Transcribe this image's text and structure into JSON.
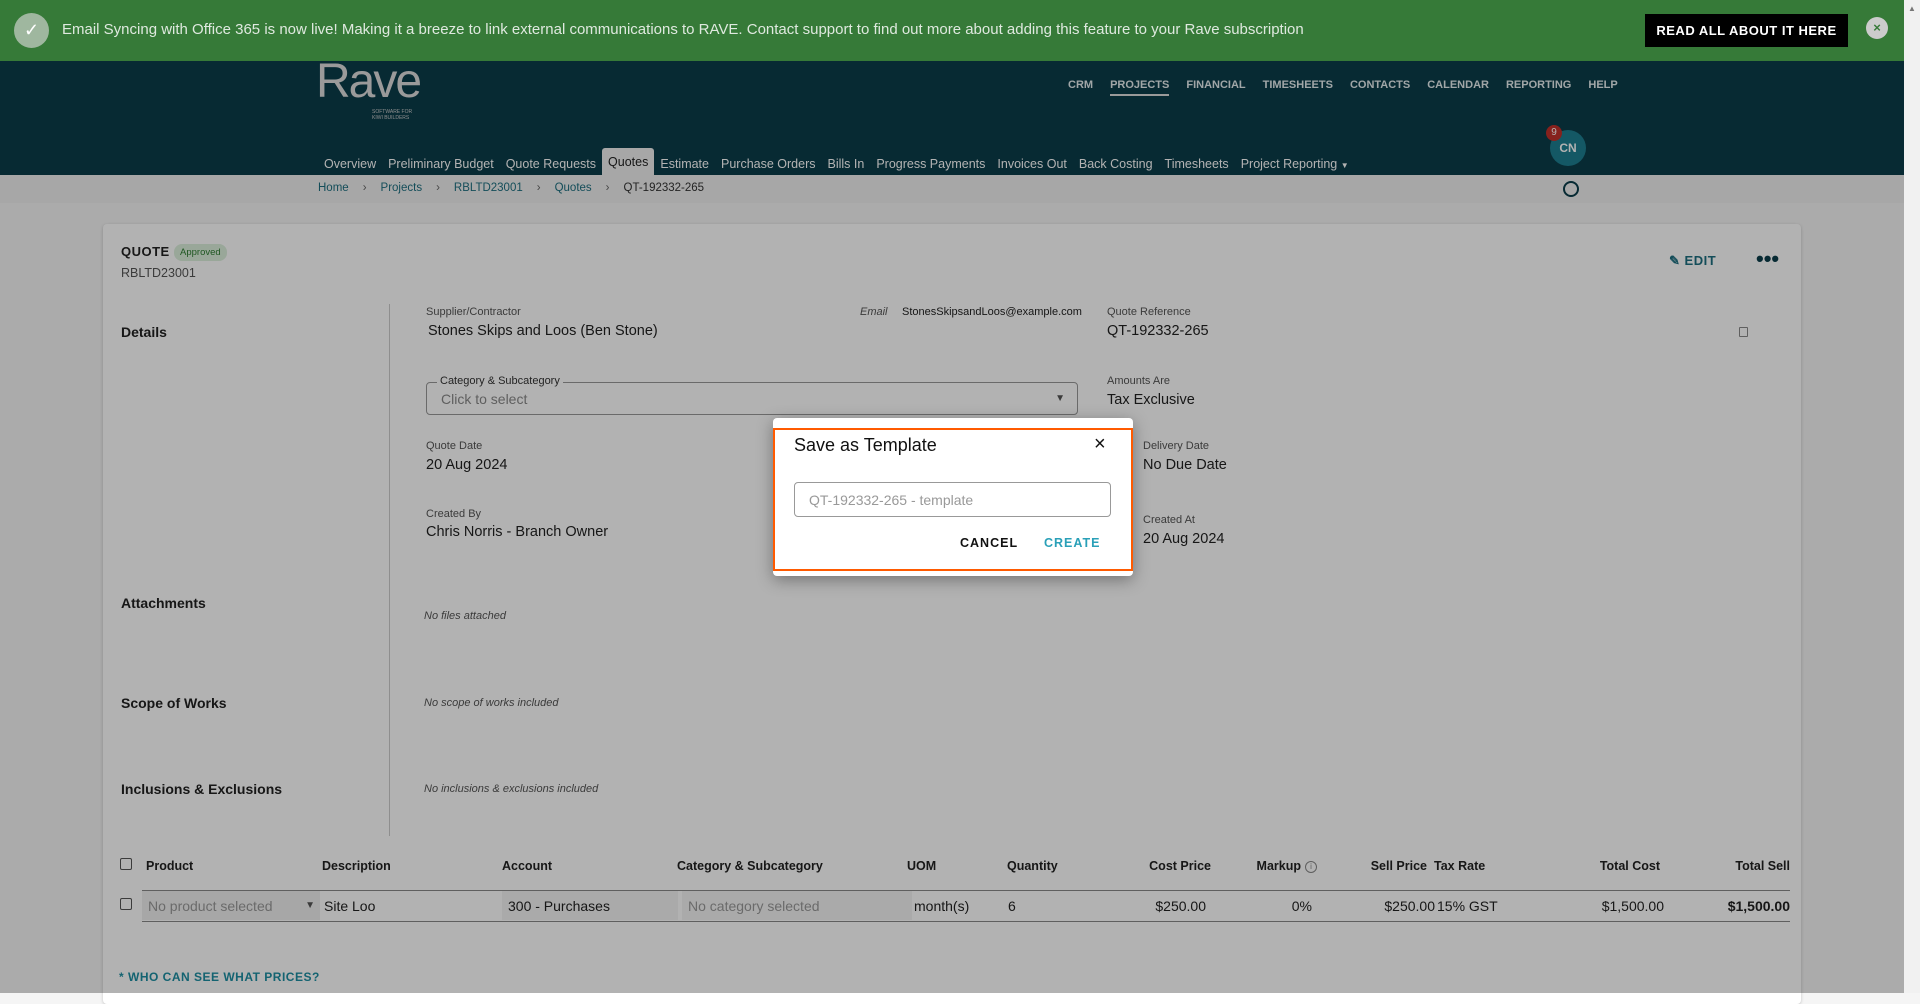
{
  "banner": {
    "message": "Email Syncing with Office 365 is now live! Making it a breeze to link external communications to RAVE. Contact support to find out more about adding this feature to your Rave subscription",
    "cta": "READ ALL ABOUT IT HERE",
    "icon": "check-circle-icon",
    "close_icon": "close-icon"
  },
  "header": {
    "logo": "Rave",
    "logo_tagline": "SOFTWARE FOR KIWI BUILDERS",
    "top_nav": [
      "CRM",
      "PROJECTS",
      "FINANCIAL",
      "TIMESHEETS",
      "CONTACTS",
      "CALENDAR",
      "REPORTING",
      "HELP"
    ],
    "active_top": "PROJECTS",
    "sub_nav": [
      "Overview",
      "Preliminary Budget",
      "Quote Requests",
      "Quotes",
      "Estimate",
      "Purchase Orders",
      "Bills In",
      "Progress Payments",
      "Invoices Out",
      "Back Costing",
      "Timesheets",
      "Project Reporting"
    ],
    "active_sub": "Quotes",
    "avatar": "CN",
    "notifications": "9"
  },
  "breadcrumb": [
    "Home",
    "Projects",
    "RBLTD23001",
    "Quotes",
    "QT-192332-265"
  ],
  "quote": {
    "title": "QUOTE",
    "status": "Approved",
    "project": "RBLTD23001",
    "edit": "EDIT",
    "details_heading": "Details",
    "supplier_label": "Supplier/Contractor",
    "supplier": "Stones Skips and Loos (Ben Stone)",
    "email_label": "Email",
    "email": "StonesSkipsandLoos@example.com",
    "ref_label": "Quote Reference",
    "ref": "QT-192332-265",
    "category_label": "Category & Subcategory",
    "category_placeholder": "Click to select",
    "amounts_label": "Amounts Are",
    "amounts": "Tax Exclusive",
    "date_label": "Quote Date",
    "date": "20 Aug 2024",
    "due_label": "Delivery Date",
    "due": "No Due Date",
    "created_by_label": "Created By",
    "created_by": "Chris Norris - Branch Owner",
    "created_at_label": "Created At",
    "created_at": "20 Aug 2024",
    "attachments": "Attachments",
    "attachments_note": "No files attached",
    "scope": "Scope of Works",
    "scope_note": "No scope of works included",
    "incl": "Inclusions & Exclusions",
    "incl_note": "No inclusions & exclusions included"
  },
  "table": {
    "headers": [
      "Product",
      "Description",
      "Account",
      "Category & Subcategory",
      "UOM",
      "Quantity",
      "Cost Price",
      "Markup",
      "Sell Price",
      "Tax Rate",
      "Total Cost",
      "Total Sell"
    ],
    "row": {
      "product": "No product selected",
      "description": "Site Loo",
      "account": "300 - Purchases",
      "category": "No category selected",
      "uom": "month(s)",
      "quantity": "6",
      "cost": "$250.00",
      "markup": "0%",
      "sell": "$250.00",
      "tax": "15% GST",
      "total_cost": "$1,500.00",
      "total_sell": "$1,500.00"
    }
  },
  "prices_link": "* WHO CAN SEE WHAT PRICES?",
  "dialog": {
    "title": "Save as Template",
    "input_placeholder": "QT-192332-265 - template",
    "cancel": "CANCEL",
    "create": "CREATE"
  },
  "colors": {
    "banner": "#367a38",
    "header": "#0b3d4a",
    "accent": "#1d8fa3",
    "highlight": "#ff5a00"
  }
}
